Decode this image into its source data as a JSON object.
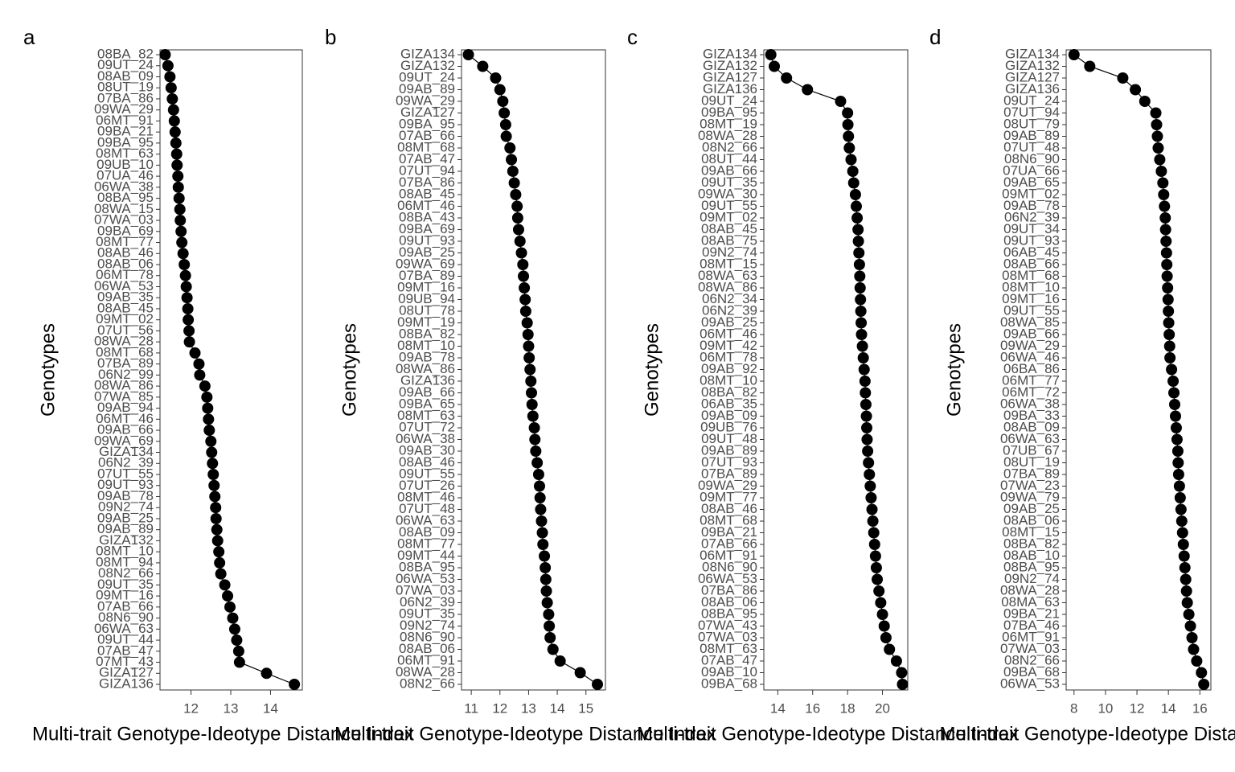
{
  "chart_data": [
    {
      "type": "dot",
      "panel_label": "a",
      "x_label": "Multi-trait Genotype-Ideotype Distance Index",
      "y_label": "Genotypes",
      "categories": [
        "08BA_82",
        "09UT_24",
        "08AB_09",
        "08UT_19",
        "07BA_86",
        "09WA_29",
        "06MT_91",
        "09BA_21",
        "09BA_95",
        "08MT_63",
        "09UB_10",
        "07UA_46",
        "06WA_38",
        "08BA_95",
        "08WA_15",
        "07WA_03",
        "09BA_69",
        "08MT_77",
        "08AB_46",
        "08AB_06",
        "06MT_78",
        "06WA_53",
        "09AB_35",
        "08AB_45",
        "09MT_02",
        "07UT_56",
        "08WA_28",
        "08MT_68",
        "07BA_89",
        "06N2_99",
        "08WA_86",
        "07WA_85",
        "09AB_94",
        "06MT_46",
        "09AB_66",
        "09WA_69",
        "GIZA134",
        "06N2_39",
        "07UT_55",
        "09UT_93",
        "09AB_78",
        "09N2_74",
        "09AB_25",
        "09AB_89",
        "GIZA132",
        "08MT_10",
        "08MT_94",
        "08N2_66",
        "09UT_35",
        "09MT_16",
        "07AB_66",
        "08N6_90",
        "06WA_63",
        "09UT_44",
        "07AB_47",
        "07MT_43",
        "GIZA127",
        "GIZA136"
      ],
      "values": [
        11.35,
        11.42,
        11.47,
        11.5,
        11.53,
        11.56,
        11.58,
        11.6,
        11.62,
        11.64,
        11.65,
        11.67,
        11.68,
        11.7,
        11.72,
        11.73,
        11.75,
        11.77,
        11.8,
        11.83,
        11.86,
        11.88,
        11.9,
        11.92,
        11.93,
        11.95,
        11.96,
        12.1,
        12.2,
        12.22,
        12.35,
        12.4,
        12.42,
        12.44,
        12.46,
        12.5,
        12.52,
        12.54,
        12.56,
        12.58,
        12.6,
        12.62,
        12.63,
        12.65,
        12.67,
        12.7,
        12.72,
        12.75,
        12.85,
        12.92,
        12.98,
        13.05,
        13.1,
        13.15,
        13.2,
        13.22,
        13.9,
        14.6
      ],
      "xlim": [
        11.22,
        14.8
      ],
      "xticks": [
        12,
        13,
        14
      ],
      "color": "#000000"
    },
    {
      "type": "dot",
      "panel_label": "b",
      "x_label": "Multi-trait Genotype-Ideotype Distance Index",
      "y_label": "Genotypes",
      "categories": [
        "GIZA134",
        "GIZA132",
        "09UT_24",
        "09AB_89",
        "09WA_29",
        "GIZA127",
        "09BA_95",
        "07AB_66",
        "08MT_68",
        "07AB_47",
        "07UT_94",
        "07BA_86",
        "08AB_45",
        "06MT_46",
        "08BA_43",
        "09BA_69",
        "09UT_93",
        "09AB_25",
        "09WA_69",
        "07BA_89",
        "09MT_16",
        "09UB_94",
        "08UT_78",
        "09MT_19",
        "08BA_82",
        "08MT_10",
        "09AB_78",
        "08WA_86",
        "GIZA136",
        "09AB_66",
        "09BA_65",
        "08MT_63",
        "07UT_72",
        "06WA_38",
        "09AB_30",
        "08AB_46",
        "09UT_55",
        "07UT_26",
        "08MT_46",
        "07UT_48",
        "06WA_63",
        "08AB_09",
        "08MT_77",
        "09MT_44",
        "08BA_95",
        "06WA_53",
        "07WA_03",
        "06N2_39",
        "09UT_35",
        "09N2_74",
        "08N6_90",
        "08AB_06",
        "06MT_91",
        "08WA_28",
        "08N2_66"
      ],
      "values": [
        10.9,
        11.4,
        11.85,
        12.0,
        12.1,
        12.15,
        12.2,
        12.22,
        12.35,
        12.4,
        12.45,
        12.5,
        12.55,
        12.6,
        12.62,
        12.65,
        12.7,
        12.75,
        12.8,
        12.82,
        12.85,
        12.88,
        12.9,
        12.95,
        12.98,
        13.0,
        13.02,
        13.05,
        13.08,
        13.1,
        13.12,
        13.15,
        13.2,
        13.22,
        13.25,
        13.3,
        13.35,
        13.38,
        13.4,
        13.42,
        13.45,
        13.48,
        13.5,
        13.55,
        13.58,
        13.6,
        13.62,
        13.65,
        13.7,
        13.72,
        13.75,
        13.85,
        14.1,
        14.8,
        15.4
      ],
      "xlim": [
        10.66,
        15.68
      ],
      "xticks": [
        11,
        12,
        13,
        14,
        15
      ],
      "color": "#000000"
    },
    {
      "type": "dot",
      "panel_label": "c",
      "x_label": "Multi-trait Genotype-Ideotype Distance Index",
      "y_label": "Genotypes",
      "categories": [
        "GIZA134",
        "GIZA132",
        "GIZA127",
        "GIZA136",
        "09UT_24",
        "09BA_95",
        "08MT_19",
        "08WA_28",
        "08N2_66",
        "08UT_44",
        "09AB_66",
        "09UT_35",
        "09WA_30",
        "09UT_55",
        "09MT_02",
        "08AB_45",
        "08AB_75",
        "09N2_74",
        "08MT_15",
        "08WA_63",
        "08WA_86",
        "06N2_34",
        "06N2_39",
        "09AB_25",
        "06MT_46",
        "09MT_42",
        "06MT_78",
        "09AB_92",
        "08MT_10",
        "08BA_82",
        "06AB_35",
        "09AB_09",
        "09UB_76",
        "09UT_48",
        "09AB_89",
        "07UT_93",
        "07BA_89",
        "09WA_29",
        "09MT_77",
        "08AB_46",
        "08MT_68",
        "09BA_21",
        "07AB_66",
        "06MT_91",
        "08N6_90",
        "06WA_53",
        "07BA_86",
        "08AB_06",
        "08BA_95",
        "07WA_43",
        "07WA_03",
        "08MT_63",
        "07AB_47",
        "09AB_10",
        "09BA_68"
      ],
      "values": [
        13.6,
        13.8,
        14.5,
        15.7,
        17.6,
        18.0,
        18.02,
        18.05,
        18.1,
        18.2,
        18.3,
        18.35,
        18.45,
        18.5,
        18.55,
        18.6,
        18.62,
        18.65,
        18.68,
        18.7,
        18.72,
        18.74,
        18.76,
        18.78,
        18.8,
        18.85,
        18.9,
        18.95,
        19.0,
        19.02,
        19.05,
        19.08,
        19.1,
        19.12,
        19.15,
        19.2,
        19.25,
        19.3,
        19.35,
        19.4,
        19.45,
        19.5,
        19.55,
        19.6,
        19.65,
        19.7,
        19.8,
        19.9,
        20.0,
        20.1,
        20.2,
        20.4,
        20.8,
        21.1,
        21.15
      ],
      "xlim": [
        13.2,
        21.45
      ],
      "xticks": [
        14,
        16,
        18,
        20
      ],
      "color": "#000000"
    },
    {
      "type": "dot",
      "panel_label": "d",
      "x_label": "Multi-trait Genotype-Ideotype Distance Index",
      "y_label": "Genotypes",
      "categories": [
        "GIZA134",
        "GIZA132",
        "GIZA127",
        "GIZA136",
        "09UT_24",
        "07UT_94",
        "08UT_79",
        "09AB_89",
        "07UT_48",
        "08N6_90",
        "07UA_66",
        "09AB_65",
        "09MT_02",
        "09AB_78",
        "06N2_39",
        "09UT_34",
        "09UT_93",
        "06AB_45",
        "08AB_66",
        "08MT_68",
        "08MT_10",
        "09MT_16",
        "09UT_55",
        "08WA_85",
        "09AB_66",
        "09WA_29",
        "06WA_46",
        "06BA_86",
        "06MT_77",
        "06MT_72",
        "06WA_38",
        "09BA_33",
        "08AB_09",
        "06WA_63",
        "07UB_67",
        "08UT_19",
        "07BA_89",
        "07WA_23",
        "09WA_79",
        "09AB_25",
        "08AB_06",
        "08MT_15",
        "08BA_82",
        "08AB_10",
        "08BA_95",
        "09N2_74",
        "08WA_28",
        "08MA_63",
        "09BA_21",
        "07BA_46",
        "06MT_91",
        "07WA_03",
        "08N2_66",
        "09BA_68",
        "06WA_53"
      ],
      "values": [
        8.0,
        9.0,
        11.1,
        11.9,
        12.5,
        13.2,
        13.25,
        13.3,
        13.35,
        13.45,
        13.55,
        13.65,
        13.7,
        13.75,
        13.8,
        13.82,
        13.85,
        13.88,
        13.9,
        13.92,
        13.95,
        13.98,
        14.0,
        14.02,
        14.05,
        14.08,
        14.1,
        14.2,
        14.3,
        14.35,
        14.4,
        14.45,
        14.5,
        14.55,
        14.6,
        14.62,
        14.65,
        14.7,
        14.75,
        14.8,
        14.85,
        14.9,
        14.95,
        15.0,
        15.05,
        15.1,
        15.15,
        15.2,
        15.3,
        15.4,
        15.5,
        15.6,
        15.8,
        16.1,
        16.25
      ],
      "xlim": [
        7.5,
        16.7
      ],
      "xticks": [
        8,
        10,
        12,
        14,
        16
      ],
      "color": "#000000"
    }
  ]
}
